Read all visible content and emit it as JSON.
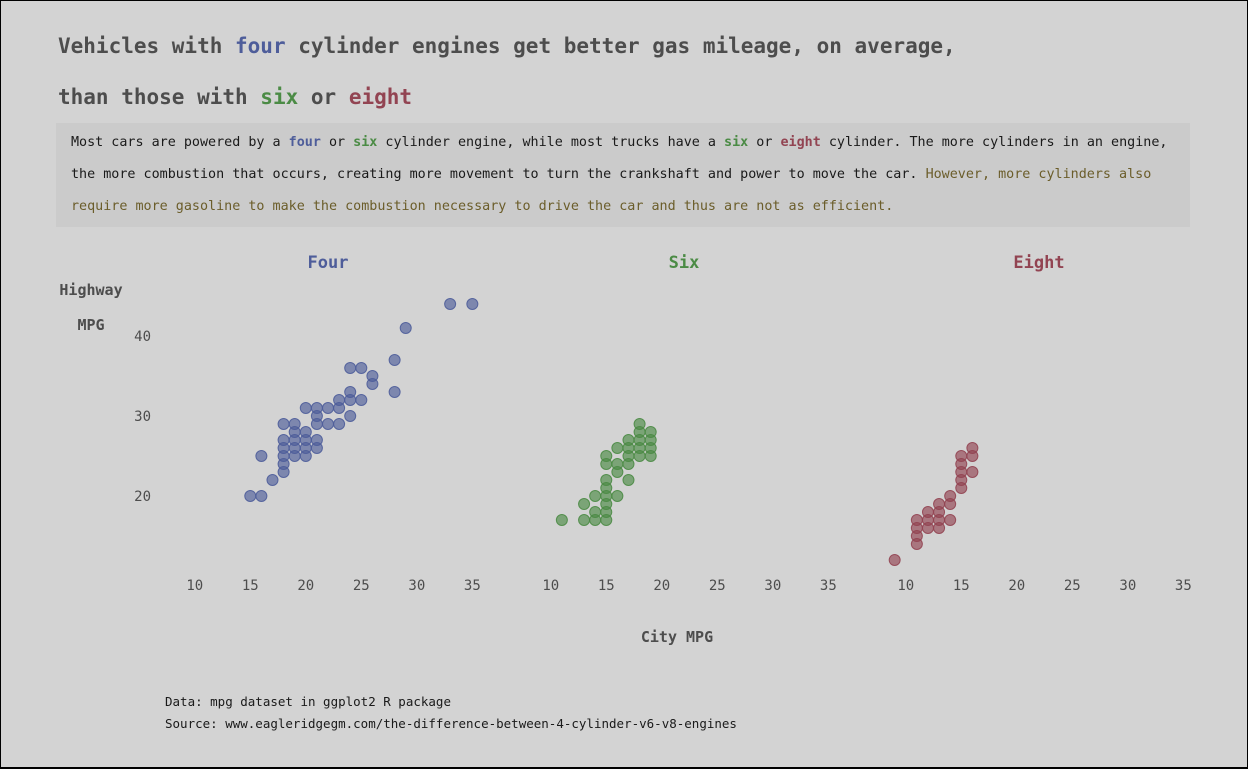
{
  "title": {
    "line1": {
      "pre": "Vehicles with ",
      "four": "four",
      "post": " cylinder engines get better gas mileage, on average,"
    },
    "line2": {
      "pre": "than those with ",
      "six": "six",
      "mid": " or ",
      "eight": "eight"
    }
  },
  "description": {
    "line1": {
      "t1": "Most cars are powered by a ",
      "four": "four",
      "t2": " or ",
      "six": "six",
      "t3": " cylinder engine, while most trucks have a ",
      "six2": "six",
      "t4": " or ",
      "eight": "eight",
      "t5": " cylinder. The more cylinders in an engine,"
    },
    "line2": {
      "plain": "the more combustion that occurs, creating more movement to turn the crankshaft and power to move the car. ",
      "highlight": "However, more cylinders also"
    },
    "line3": {
      "highlight": "require more gasoline to make the combustion necessary to drive the car and thus are not as efficient."
    }
  },
  "caption": {
    "line1": "Data: mpg dataset in ggplot2 R package",
    "line2": "Source: www.eagleridgegm.com/the-difference-between-4-cylinder-v6-v8-engines"
  },
  "colors": {
    "four": "#4e5d9a",
    "six": "#4b8b45",
    "eight": "#924452",
    "highlight_text": "#6b5d2a",
    "background": "#d3d3d3",
    "description_bg": "#cbcbcb"
  },
  "chart_data": {
    "type": "scatter",
    "xlabel": "City MPG",
    "ylabel": [
      "Highway",
      "MPG"
    ],
    "xlim": [
      7.5,
      36.5
    ],
    "ylim": [
      11,
      46
    ],
    "x_ticks": [
      10,
      15,
      20,
      25,
      30,
      35
    ],
    "y_ticks": [
      20,
      30,
      40
    ],
    "grid": false,
    "facets": [
      {
        "name": "Four",
        "color": "#4e5d9a",
        "points": [
          [
            15,
            20
          ],
          [
            16,
            20
          ],
          [
            16,
            25
          ],
          [
            17,
            22
          ],
          [
            18,
            23
          ],
          [
            18,
            24
          ],
          [
            18,
            25
          ],
          [
            18,
            26
          ],
          [
            18,
            27
          ],
          [
            18,
            29
          ],
          [
            19,
            25
          ],
          [
            19,
            26
          ],
          [
            19,
            27
          ],
          [
            19,
            28
          ],
          [
            19,
            29
          ],
          [
            20,
            25
          ],
          [
            20,
            26
          ],
          [
            20,
            27
          ],
          [
            20,
            28
          ],
          [
            20,
            31
          ],
          [
            21,
            26
          ],
          [
            21,
            27
          ],
          [
            21,
            29
          ],
          [
            21,
            30
          ],
          [
            21,
            31
          ],
          [
            22,
            29
          ],
          [
            22,
            31
          ],
          [
            23,
            29
          ],
          [
            23,
            31
          ],
          [
            23,
            32
          ],
          [
            24,
            30
          ],
          [
            24,
            32
          ],
          [
            24,
            33
          ],
          [
            24,
            36
          ],
          [
            25,
            32
          ],
          [
            25,
            36
          ],
          [
            26,
            34
          ],
          [
            26,
            35
          ],
          [
            28,
            33
          ],
          [
            28,
            37
          ],
          [
            29,
            41
          ],
          [
            33,
            44
          ],
          [
            35,
            44
          ]
        ]
      },
      {
        "name": "Six",
        "color": "#4b8b45",
        "points": [
          [
            11,
            17
          ],
          [
            13,
            17
          ],
          [
            13,
            19
          ],
          [
            14,
            17
          ],
          [
            14,
            18
          ],
          [
            14,
            20
          ],
          [
            15,
            17
          ],
          [
            15,
            18
          ],
          [
            15,
            19
          ],
          [
            15,
            20
          ],
          [
            15,
            21
          ],
          [
            15,
            22
          ],
          [
            15,
            24
          ],
          [
            15,
            25
          ],
          [
            16,
            20
          ],
          [
            16,
            23
          ],
          [
            16,
            24
          ],
          [
            16,
            26
          ],
          [
            17,
            22
          ],
          [
            17,
            24
          ],
          [
            17,
            25
          ],
          [
            17,
            26
          ],
          [
            17,
            27
          ],
          [
            18,
            25
          ],
          [
            18,
            26
          ],
          [
            18,
            27
          ],
          [
            18,
            28
          ],
          [
            18,
            29
          ],
          [
            19,
            25
          ],
          [
            19,
            26
          ],
          [
            19,
            27
          ],
          [
            19,
            28
          ]
        ]
      },
      {
        "name": "Eight",
        "color": "#924452",
        "points": [
          [
            9,
            12
          ],
          [
            11,
            14
          ],
          [
            11,
            15
          ],
          [
            11,
            16
          ],
          [
            11,
            17
          ],
          [
            12,
            16
          ],
          [
            12,
            17
          ],
          [
            12,
            18
          ],
          [
            13,
            16
          ],
          [
            13,
            17
          ],
          [
            13,
            18
          ],
          [
            13,
            19
          ],
          [
            14,
            17
          ],
          [
            14,
            19
          ],
          [
            14,
            20
          ],
          [
            15,
            21
          ],
          [
            15,
            22
          ],
          [
            15,
            23
          ],
          [
            15,
            24
          ],
          [
            15,
            25
          ],
          [
            16,
            23
          ],
          [
            16,
            25
          ],
          [
            16,
            26
          ]
        ]
      }
    ]
  }
}
